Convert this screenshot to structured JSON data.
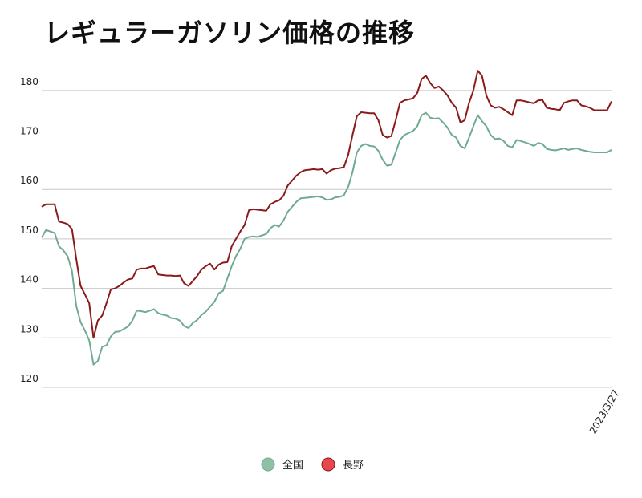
{
  "chart_data": {
    "type": "line",
    "title": "レギュラーガソリン価格の推移",
    "xlabel": "",
    "ylabel": "",
    "ylim": [
      120,
      185
    ],
    "yticks": [
      120,
      130,
      140,
      150,
      160,
      170,
      180
    ],
    "x_tick_labels": [
      "2023/3/27"
    ],
    "grid": true,
    "legend_position": "bottom-center",
    "series": [
      {
        "name": "全国",
        "color": "#6fab91",
        "values": [
          150.3,
          151.8,
          151.5,
          151.2,
          148.5,
          147.7,
          146.5,
          143.5,
          136.5,
          133.2,
          131.5,
          129.5,
          124.6,
          125.3,
          128.2,
          128.5,
          130.3,
          131.2,
          131.3,
          131.8,
          132.3,
          133.5,
          135.5,
          135.4,
          135.2,
          135.5,
          135.8,
          135.0,
          134.7,
          134.5,
          134.0,
          133.9,
          133.5,
          132.4,
          132.0,
          133.0,
          133.6,
          134.6,
          135.3,
          136.3,
          137.3,
          139.0,
          139.5,
          142.0,
          144.5,
          146.5,
          148.0,
          150.0,
          150.4,
          150.5,
          150.4,
          150.7,
          151.0,
          152.2,
          152.8,
          152.5,
          153.7,
          155.5,
          156.5,
          157.5,
          158.2,
          158.3,
          158.4,
          158.5,
          158.6,
          158.4,
          157.9,
          158.0,
          158.4,
          158.5,
          158.8,
          160.5,
          163.5,
          167.5,
          168.8,
          169.2,
          168.8,
          168.7,
          167.8,
          166.0,
          164.8,
          165.0,
          167.5,
          170.0,
          171.0,
          171.4,
          171.8,
          172.8,
          175.0,
          175.5,
          174.5,
          174.3,
          174.4,
          173.5,
          172.5,
          171.0,
          170.5,
          168.8,
          168.3,
          170.5,
          172.8,
          175.0,
          173.8,
          172.8,
          171.0,
          170.2,
          170.3,
          169.8,
          168.8,
          168.5,
          170.0,
          169.8,
          169.5,
          169.2,
          168.8,
          169.4,
          169.2,
          168.2,
          168.0,
          167.9,
          168.1,
          168.3,
          168.0,
          168.2,
          168.3,
          168.0,
          167.8,
          167.6,
          167.5,
          167.5,
          167.5,
          167.5,
          168.0
        ]
      },
      {
        "name": "長野",
        "color": "#8b1a1a",
        "values": [
          156.5,
          157.0,
          157.0,
          157.0,
          153.5,
          153.3,
          153.0,
          152.0,
          146.0,
          140.5,
          138.8,
          137.0,
          130.0,
          133.5,
          134.5,
          137.0,
          139.8,
          140.0,
          140.5,
          141.2,
          141.8,
          142.0,
          143.8,
          144.0,
          144.0,
          144.3,
          144.5,
          142.8,
          142.7,
          142.6,
          142.6,
          142.5,
          142.6,
          141.0,
          140.5,
          141.5,
          142.5,
          143.8,
          144.5,
          145.0,
          143.8,
          144.8,
          145.2,
          145.3,
          148.5,
          150.0,
          151.5,
          152.8,
          155.8,
          156.0,
          155.9,
          155.8,
          155.7,
          157.0,
          157.5,
          157.8,
          158.7,
          160.8,
          161.8,
          162.8,
          163.5,
          163.9,
          164.0,
          164.1,
          164.0,
          164.1,
          163.2,
          163.9,
          164.2,
          164.3,
          164.5,
          167.0,
          171.0,
          174.8,
          175.6,
          175.5,
          175.4,
          175.4,
          174.0,
          171.0,
          170.5,
          170.8,
          174.0,
          177.5,
          178.0,
          178.2,
          178.4,
          179.5,
          182.3,
          183.0,
          181.5,
          180.5,
          180.8,
          180.0,
          179.0,
          177.5,
          176.5,
          173.5,
          174.0,
          177.5,
          180.0,
          184.0,
          183.0,
          179.0,
          177.0,
          176.5,
          176.7,
          176.2,
          175.6,
          175.0,
          178.0,
          178.0,
          177.8,
          177.6,
          177.4,
          178.0,
          178.1,
          176.5,
          176.3,
          176.2,
          176.0,
          177.5,
          177.8,
          178.0,
          178.0,
          177.0,
          176.8,
          176.5,
          176.0,
          176.0,
          176.0,
          176.0,
          177.8
        ]
      }
    ]
  }
}
